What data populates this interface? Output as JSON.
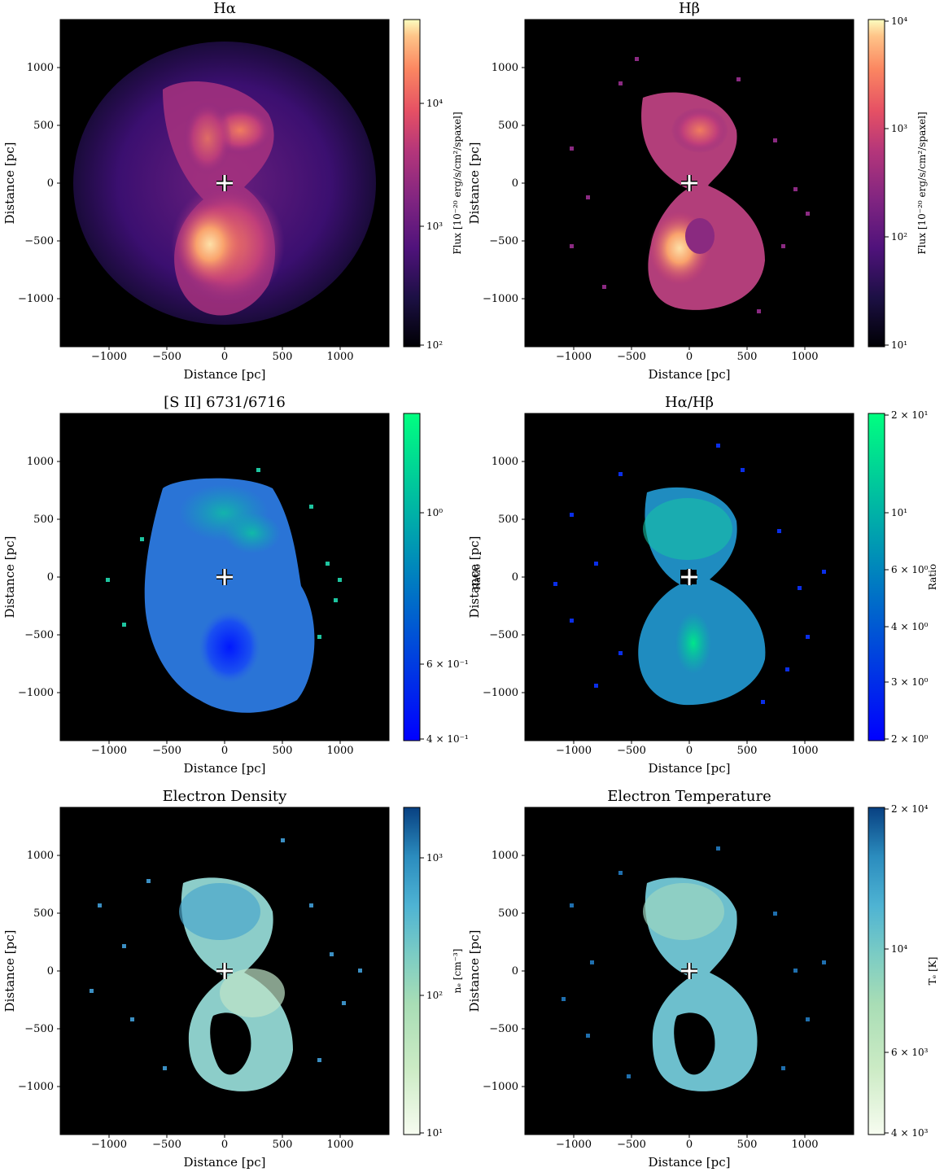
{
  "figure": {
    "panels": [
      {
        "id": "ha",
        "title": "Hα",
        "cbar_label": "Flux [10⁻²⁰ erg/s/cm²/spaxel]",
        "cmap": "magma"
      },
      {
        "id": "hb",
        "title": "Hβ",
        "cbar_label": "Flux [10⁻²⁰ erg/s/cm²/spaxel]",
        "cmap": "magma"
      },
      {
        "id": "sii",
        "title": "[S II] 6731/6716",
        "cbar_label": "Ratio",
        "cmap": "winter"
      },
      {
        "id": "hahb",
        "title": "Hα/Hβ",
        "cbar_label": "Ratio",
        "cmap": "winter"
      },
      {
        "id": "ne",
        "title": "Electron Density",
        "cbar_label": "nₑ [cm⁻³]",
        "cmap": "GnBu"
      },
      {
        "id": "te",
        "title": "Electron Temperature",
        "cbar_label": "Tₑ [K]",
        "cmap": "GnBu"
      }
    ]
  },
  "chart_data": [
    {
      "type": "heatmap",
      "title": "Hα",
      "xlabel": "Distance [pc]",
      "ylabel": "Distance [pc]",
      "xlim": [
        -1400,
        1400
      ],
      "ylim": [
        -1400,
        1400
      ],
      "xticks": [
        "−1000",
        "−500",
        "0",
        "500",
        "1000"
      ],
      "yticks": [
        "1000",
        "500",
        "0",
        "−500",
        "−1000"
      ],
      "colorbar": {
        "label": "Flux [10⁻²⁰ erg/s/cm²/spaxel]",
        "scale": "log",
        "range": [
          100,
          50000
        ],
        "ticks": [
          "10⁴",
          "10³",
          "10²"
        ]
      },
      "marker": "center cross at (0, 0)"
    },
    {
      "type": "heatmap",
      "title": "Hβ",
      "xlabel": "Distance [pc]",
      "ylabel": "Distance [pc]",
      "xlim": [
        -1400,
        1400
      ],
      "ylim": [
        -1400,
        1400
      ],
      "xticks": [
        "−1000",
        "−500",
        "0",
        "500",
        "1000"
      ],
      "yticks": [
        "1000",
        "500",
        "0",
        "−500",
        "−1000"
      ],
      "colorbar": {
        "label": "Flux [10⁻²⁰ erg/s/cm²/spaxel]",
        "scale": "log",
        "range": [
          10,
          10000
        ],
        "ticks": [
          "10⁴",
          "10³",
          "10²",
          "10¹"
        ]
      },
      "marker": "center cross at (0, 0)"
    },
    {
      "type": "heatmap",
      "title": "[S II] 6731/6716",
      "xlabel": "Distance [pc]",
      "ylabel": "Distance [pc]",
      "xlim": [
        -1400,
        1400
      ],
      "ylim": [
        -1400,
        1400
      ],
      "xticks": [
        "−1000",
        "−500",
        "0",
        "500",
        "1000"
      ],
      "yticks": [
        "1000",
        "500",
        "0",
        "−500",
        "−1000"
      ],
      "colorbar": {
        "label": "Ratio",
        "scale": "log",
        "range": [
          0.4,
          1.5
        ],
        "ticks": [
          "10⁰",
          "6 × 10⁻¹",
          "4 × 10⁻¹"
        ]
      },
      "marker": "center cross at (0, 0)"
    },
    {
      "type": "heatmap",
      "title": "Hα/Hβ",
      "xlabel": "Distance [pc]",
      "ylabel": "Distance [pc]",
      "xlim": [
        -1400,
        1400
      ],
      "ylim": [
        -1400,
        1400
      ],
      "xticks": [
        "−1000",
        "−500",
        "0",
        "500",
        "1000"
      ],
      "yticks": [
        "1000",
        "500",
        "0",
        "−500",
        "−1000"
      ],
      "colorbar": {
        "label": "Ratio",
        "scale": "log",
        "range": [
          2,
          20
        ],
        "ticks": [
          "2 × 10¹",
          "10¹",
          "6 × 10⁰",
          "4 × 10⁰",
          "3 × 10⁰",
          "2 × 10⁰"
        ]
      },
      "marker": "center cross at (0, 0)"
    },
    {
      "type": "heatmap",
      "title": "Electron Density",
      "xlabel": "Distance [pc]",
      "ylabel": "Distance [pc]",
      "xlim": [
        -1400,
        1400
      ],
      "ylim": [
        -1400,
        1400
      ],
      "xticks": [
        "−1000",
        "−500",
        "0",
        "500",
        "1000"
      ],
      "yticks": [
        "1000",
        "500",
        "0",
        "−500",
        "−1000"
      ],
      "colorbar": {
        "label": "nₑ [cm⁻³]",
        "scale": "log",
        "range": [
          10,
          4000
        ],
        "ticks": [
          "10³",
          "10²",
          "10¹"
        ]
      },
      "marker": "center cross at (0, 0)"
    },
    {
      "type": "heatmap",
      "title": "Electron Temperature",
      "xlabel": "Distance [pc]",
      "ylabel": "Distance [pc]",
      "xlim": [
        -1400,
        1400
      ],
      "ylim": [
        -1400,
        1400
      ],
      "xticks": [
        "−1000",
        "−500",
        "0",
        "500",
        "1000"
      ],
      "yticks": [
        "1000",
        "500",
        "0",
        "−500",
        "−1000"
      ],
      "colorbar": {
        "label": "Tₑ [K]",
        "scale": "log",
        "range": [
          4000,
          20000
        ],
        "ticks": [
          "2 × 10⁴",
          "10⁴",
          "6 × 10³",
          "4 × 10³"
        ]
      },
      "marker": "center cross at (0, 0)"
    }
  ]
}
